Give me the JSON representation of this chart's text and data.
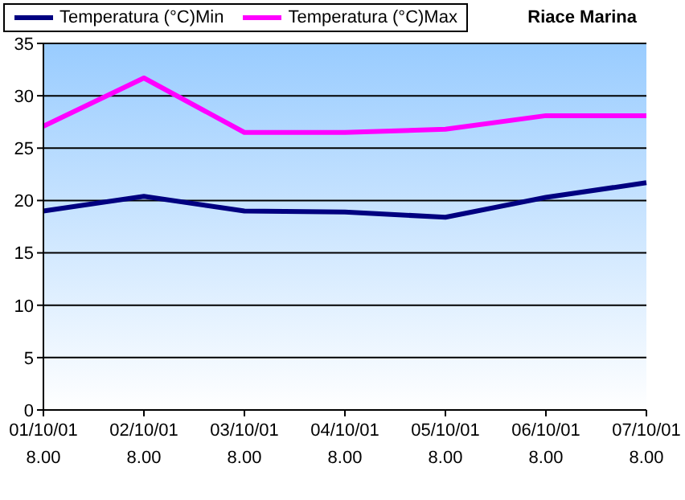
{
  "chart_data": {
    "type": "line",
    "title": "Riace Marina",
    "categories": [
      "01/10/01 8.00",
      "02/10/01 8.00",
      "03/10/01 8.00",
      "04/10/01 8.00",
      "05/10/01 8.00",
      "06/10/01 8.00",
      "07/10/01 8.00"
    ],
    "series": [
      {
        "name": "Temperatura (°C)Min",
        "color": "#000080",
        "values": [
          19.0,
          20.4,
          19.0,
          18.9,
          18.4,
          20.3,
          21.7
        ]
      },
      {
        "name": "Temperatura (°C)Max",
        "color": "#ff00ff",
        "values": [
          27.1,
          31.7,
          26.5,
          26.5,
          26.8,
          28.1,
          28.1
        ]
      }
    ],
    "ylim": [
      0,
      35
    ],
    "yticks": [
      0,
      5,
      10,
      15,
      20,
      25,
      30,
      35
    ],
    "grid": "y",
    "legend": "top",
    "marker": "none",
    "line_style": "solid"
  }
}
